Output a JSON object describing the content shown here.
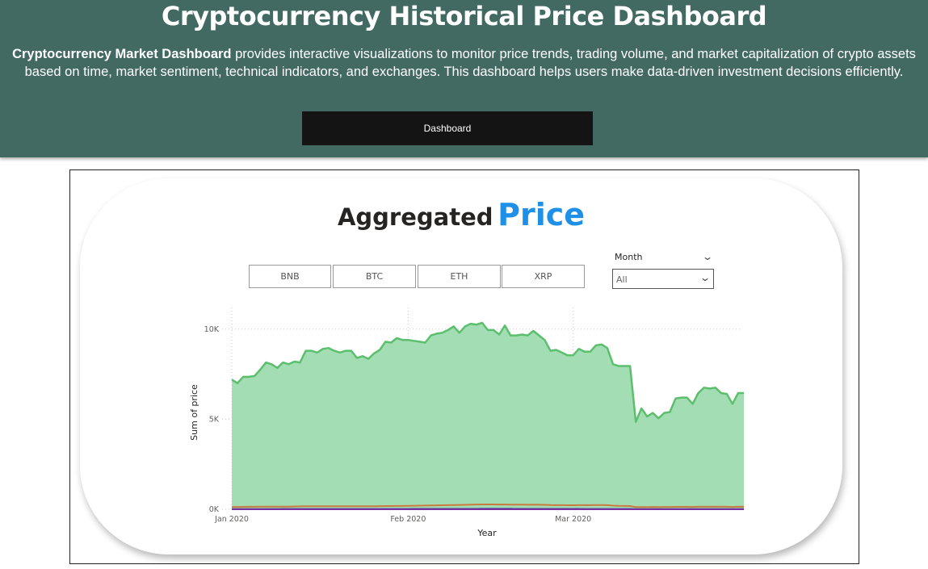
{
  "header": {
    "title": "Cryptocurrency Historical Price Dashboard",
    "description_bold": "Cryptocurrency Market Dashboard",
    "description_rest": " provides interactive visualizations to monitor price trends, trading volume, and market capitalization of crypto assets based on time, market sentiment, technical indicators, and exchanges. This dashboard helps users make data-driven investment decisions efficiently.",
    "button_label": "Dashboard"
  },
  "panel": {
    "title_part1": "Aggregated",
    "title_part2": "Price",
    "title_color": "#1e90e8",
    "coin_slicer": [
      "BNB",
      "BTC",
      "ETH",
      "XRP"
    ],
    "month_dropdown": {
      "label": "Month",
      "value": "All"
    }
  },
  "colors": {
    "header_bg": "#426962",
    "button_bg": "#141414",
    "btc": "#5cbf6d",
    "btc_fill": "#a3ddb4",
    "eth": "#c97a3e",
    "bnb": "#3b3b8c",
    "xrp": "#7a2fa0"
  },
  "chart_data": {
    "type": "area",
    "xlabel": "Year",
    "ylabel": "Sum of price",
    "x_ticks": [
      "Jan 2020",
      "Feb 2020",
      "Mar 2020"
    ],
    "y_ticks": [
      "0K",
      "5K",
      "10K"
    ],
    "ylim": [
      0,
      11200
    ],
    "x_range": [
      "2020-01-01",
      "2020-03-31"
    ],
    "grid": "dotted vertical and horizontal",
    "series": [
      {
        "key": "btc",
        "values": [
          7200,
          7000,
          7350,
          7350,
          7400,
          7750,
          8150,
          8050,
          7850,
          8150,
          8050,
          8200,
          8150,
          8800,
          8800,
          8700,
          8900,
          8950,
          8800,
          8700,
          8800,
          8800,
          8400,
          8500,
          8350,
          8650,
          8850,
          9300,
          9250,
          9500,
          9400,
          9400,
          9350,
          9300,
          9250,
          9650,
          9750,
          9800,
          9950,
          10150,
          9800,
          10150,
          10300,
          10250,
          10350,
          9950,
          9950,
          9700,
          10200,
          9650,
          9650,
          9700,
          9650,
          9900,
          9650,
          9400,
          8800,
          8850,
          8700,
          8550,
          8550,
          8900,
          8750,
          8750,
          9100,
          9150,
          8950,
          8050,
          7950,
          7950,
          7950,
          4850,
          5600,
          5150,
          5350,
          5050,
          5350,
          5400,
          6150,
          6200,
          6200,
          5850,
          6450,
          6750,
          6700,
          6750,
          6450,
          6400,
          5850,
          6450,
          6450
        ]
      },
      {
        "key": "eth",
        "values": [
          130,
          130,
          135,
          140,
          140,
          142,
          145,
          145,
          145,
          148,
          150,
          155,
          160,
          165,
          165,
          165,
          170,
          170,
          170,
          168,
          170,
          172,
          168,
          170,
          168,
          172,
          175,
          178,
          180,
          185,
          185,
          190,
          195,
          200,
          205,
          215,
          220,
          225,
          230,
          235,
          240,
          245,
          255,
          265,
          270,
          270,
          268,
          265,
          265,
          260,
          255,
          255,
          252,
          255,
          250,
          245,
          235,
          230,
          230,
          225,
          225,
          230,
          228,
          228,
          232,
          235,
          230,
          200,
          190,
          185,
          180,
          120,
          125,
          125,
          128,
          122,
          128,
          130,
          135,
          136,
          136,
          132,
          138,
          140,
          140,
          142,
          138,
          138,
          132,
          138,
          138
        ]
      },
      {
        "key": "bnb",
        "values": [
          14,
          14,
          14,
          14,
          15,
          15,
          15,
          15,
          15,
          16,
          16,
          16,
          16,
          17,
          17,
          17,
          17,
          18,
          18,
          18,
          18,
          18,
          18,
          18,
          18,
          18,
          19,
          19,
          19,
          20,
          20,
          20,
          21,
          21,
          21,
          22,
          22,
          22,
          23,
          23,
          23,
          24,
          24,
          24,
          25,
          25,
          25,
          25,
          25,
          25,
          24,
          24,
          24,
          24,
          23,
          23,
          22,
          22,
          22,
          21,
          21,
          21,
          20,
          20,
          20,
          20,
          20,
          19,
          18,
          18,
          17,
          12,
          12,
          12,
          12,
          12,
          12,
          12,
          13,
          13,
          13,
          13,
          13,
          13,
          13,
          14,
          14,
          14,
          13,
          13,
          13
        ]
      },
      {
        "key": "xrp",
        "values": [
          0.19,
          0.19,
          0.2,
          0.2,
          0.2,
          0.21,
          0.21,
          0.22,
          0.22,
          0.22,
          0.22,
          0.23,
          0.23,
          0.24,
          0.24,
          0.24,
          0.24,
          0.25,
          0.25,
          0.25,
          0.25,
          0.25,
          0.24,
          0.24,
          0.24,
          0.25,
          0.25,
          0.26,
          0.27,
          0.27,
          0.27,
          0.28,
          0.28,
          0.28,
          0.29,
          0.3,
          0.3,
          0.3,
          0.31,
          0.32,
          0.32,
          0.32,
          0.33,
          0.33,
          0.33,
          0.32,
          0.32,
          0.31,
          0.31,
          0.3,
          0.29,
          0.29,
          0.28,
          0.28,
          0.28,
          0.27,
          0.26,
          0.25,
          0.25,
          0.24,
          0.24,
          0.24,
          0.24,
          0.24,
          0.24,
          0.24,
          0.23,
          0.22,
          0.21,
          0.21,
          0.2,
          0.15,
          0.15,
          0.15,
          0.16,
          0.16,
          0.16,
          0.16,
          0.17,
          0.17,
          0.17,
          0.17,
          0.17,
          0.17,
          0.17,
          0.18,
          0.18,
          0.18,
          0.17,
          0.17,
          0.17
        ]
      }
    ]
  }
}
